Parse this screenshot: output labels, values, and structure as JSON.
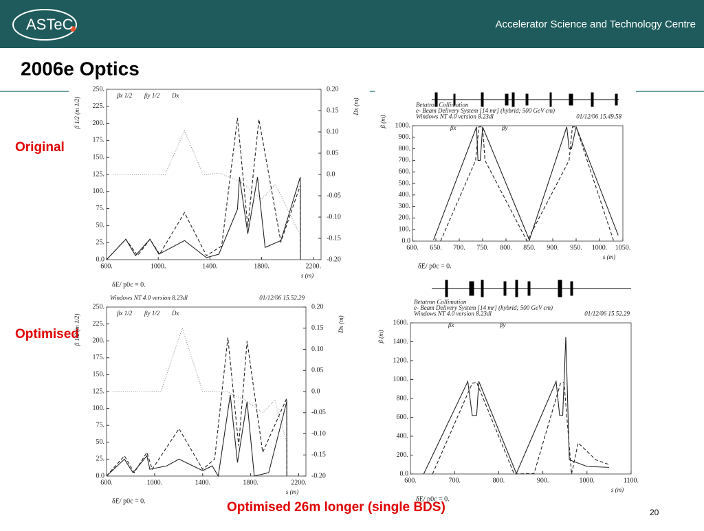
{
  "header": {
    "logo": "ASTeC",
    "organisation": "Accelerator Science and Technology Centre"
  },
  "title": "2006e Optics",
  "labels": [
    "Original",
    "Optimised"
  ],
  "caption": "Optimised 26m longer (single BDS)",
  "page_number": "20",
  "chart_data": [
    {
      "type": "line",
      "xlabel": "s (m)",
      "ylabel": "β 1/2 (m 1/2)",
      "y2label": "Dx (m)",
      "annotation": "δE/ p0c  =  0.",
      "xlim": [
        600,
        2260
      ],
      "xticks": [
        {
          "value": 600,
          "label": "600."
        },
        {
          "value": 1000,
          "label": "1000."
        },
        {
          "value": 1400,
          "label": "1400."
        },
        {
          "value": 1800,
          "label": "1800."
        },
        {
          "value": 2200,
          "label": "2200."
        }
      ],
      "ylim": [
        0,
        250
      ],
      "yticks": [
        {
          "value": 0,
          "label": "0.0"
        },
        {
          "value": 25,
          "label": "25."
        },
        {
          "value": 50,
          "label": "50."
        },
        {
          "value": 75,
          "label": "75."
        },
        {
          "value": 100,
          "label": "100."
        },
        {
          "value": 125,
          "label": "125."
        },
        {
          "value": 150,
          "label": "150."
        },
        {
          "value": 175,
          "label": "175."
        },
        {
          "value": 200,
          "label": "200."
        },
        {
          "value": 225,
          "label": "225."
        },
        {
          "value": 250,
          "label": "250."
        }
      ],
      "y2lim": [
        -0.2,
        0.2
      ],
      "y2ticks": [
        {
          "value": -0.2,
          "label": "-0.20"
        },
        -0.15,
        {
          "value": -0.1,
          "label": "-0.10"
        },
        -0.05,
        {
          "value": 0,
          "label": "0.0"
        },
        0.05,
        {
          "value": 0.1,
          "label": "0.10"
        },
        0.15,
        {
          "value": 0.2,
          "label": "0.20"
        }
      ],
      "series": [
        {
          "name": "βx 1/2",
          "color": "#222222",
          "style": "solid",
          "x": [
            600,
            749,
            824,
            936,
            1005,
            1203,
            1373,
            1469,
            1613,
            1629,
            1693,
            1768,
            1827,
            1949,
            2099,
            2100
          ],
          "values": [
            0,
            30,
            6,
            30,
            8,
            28,
            3,
            8,
            74,
            121,
            38,
            121,
            18,
            28,
            121,
            0
          ]
        },
        {
          "name": "βy 1/2",
          "color": "#222222",
          "style": "dashed",
          "x": [
            600,
            749,
            840,
            936,
            1011,
            1203,
            1373,
            1491,
            1613,
            1693,
            1779,
            1949,
            2099,
            2100
          ],
          "values": [
            0,
            30,
            6,
            30,
            8,
            69,
            6,
            20,
            208,
            48,
            206,
            26,
            109,
            0
          ]
        },
        {
          "name": "Dx",
          "color": "#888888",
          "style": "dotted",
          "axis": "y2",
          "x": [
            653,
            1053,
            1203,
            1347,
            1480,
            1640,
            1800,
            1907,
            2093
          ],
          "values": [
            0,
            0,
            0.103,
            0,
            0.003,
            -0.018,
            -0.058,
            -0.023,
            -0.139
          ]
        }
      ]
    },
    {
      "type": "line",
      "xlabel": "s (m)",
      "ylabel": "β (m)",
      "annotation": "δE/ p0c  =  0.",
      "header_lines": [
        "Betatron Collimation",
        "e- Beam Delivery System [14 mr] (hybrid; 500 GeV cm)",
        "Windows NT 4.0 version 8.23dl"
      ],
      "timestamp": "01/12/06  15.49.58",
      "xlim": [
        600,
        1050
      ],
      "xticks": [
        {
          "value": 600,
          "label": "600."
        },
        {
          "value": 650,
          "label": "650."
        },
        {
          "value": 700,
          "label": "700."
        },
        {
          "value": 750,
          "label": "750."
        },
        {
          "value": 800,
          "label": "800."
        },
        {
          "value": 850,
          "label": "850."
        },
        {
          "value": 900,
          "label": "900."
        },
        {
          "value": 950,
          "label": "950."
        },
        {
          "value": 1000,
          "label": "1000."
        },
        {
          "value": 1050,
          "label": "1050."
        }
      ],
      "ylim": [
        0,
        1000
      ],
      "yticks": [
        {
          "value": 0,
          "label": "0.0"
        },
        {
          "value": 100,
          "label": "100."
        },
        {
          "value": 200,
          "label": "200."
        },
        {
          "value": 300,
          "label": "300."
        },
        {
          "value": 400,
          "label": "400."
        },
        {
          "value": 500,
          "label": "500."
        },
        {
          "value": 600,
          "label": "600."
        },
        {
          "value": 700,
          "label": "700."
        },
        {
          "value": 800,
          "label": "800."
        },
        {
          "value": 900,
          "label": "900."
        },
        {
          "value": 1000,
          "label": "1000."
        }
      ],
      "series": [
        {
          "name": "βx",
          "color": "#222222",
          "style": "solid",
          "x": [
            645,
            737,
            740,
            745,
            750,
            850,
            930,
            935,
            940,
            950,
            1040
          ],
          "values": [
            10,
            990,
            700,
            700,
            990,
            10,
            990,
            800,
            800,
            990,
            50
          ]
        },
        {
          "name": "βy",
          "color": "#222222",
          "style": "dashed",
          "x": [
            660,
            735,
            742,
            750,
            755,
            845,
            935,
            942,
            950,
            1030
          ],
          "values": [
            0,
            700,
            990,
            990,
            700,
            0,
            700,
            990,
            990,
            5
          ]
        }
      ]
    },
    {
      "type": "line",
      "xlabel": "s (m)",
      "ylabel": "β 1/2 (m 1/2)",
      "y2label": "Dx (m)",
      "annotation": "δE/ p0c  =  0.",
      "header_lines": [
        "Windows NT 4.0 version 8.23dl"
      ],
      "timestamp": "01/12/06  15.52.29",
      "xlim": [
        600,
        2260
      ],
      "xticks": [
        {
          "value": 600,
          "label": "600."
        },
        {
          "value": 1000,
          "label": "1000."
        },
        {
          "value": 1400,
          "label": "1400."
        },
        {
          "value": 1800,
          "label": "1800."
        },
        {
          "value": 2200,
          "label": "2200."
        }
      ],
      "ylim": [
        0,
        250
      ],
      "yticks": [
        {
          "value": 0,
          "label": "0.0"
        },
        {
          "value": 25,
          "label": "25."
        },
        {
          "value": 50,
          "label": "50."
        },
        {
          "value": 75,
          "label": "75."
        },
        {
          "value": 100,
          "label": "100."
        },
        {
          "value": 125,
          "label": "125."
        },
        {
          "value": 150,
          "label": "150."
        },
        {
          "value": 175,
          "label": "175."
        },
        {
          "value": 200,
          "label": "200."
        },
        {
          "value": 225,
          "label": "225."
        },
        {
          "value": 250,
          "label": "250."
        }
      ],
      "y2lim": [
        -0.2,
        0.2
      ],
      "y2ticks": [
        {
          "value": -0.2,
          "label": "-0.20"
        },
        -0.15,
        {
          "value": -0.1,
          "label": "-0.10"
        },
        -0.05,
        {
          "value": 0,
          "label": "0.0"
        },
        0.05,
        {
          "value": 0.1,
          "label": "0.10"
        },
        0.15,
        {
          "value": 0.2,
          "label": "0.20"
        }
      ],
      "series": [
        {
          "name": "βx 1/2",
          "color": "#222222",
          "style": "solid",
          "x": [
            600,
            749,
            820,
            936,
            960,
            1100,
            1203,
            1400,
            1480,
            1530,
            1630,
            1690,
            1770,
            1830,
            1950,
            2100,
            2101
          ],
          "values": [
            0,
            25,
            5,
            30,
            10,
            15,
            25,
            8,
            15,
            0,
            120,
            20,
            110,
            0,
            5,
            110,
            0
          ]
        },
        {
          "name": "βy 1/2",
          "color": "#222222",
          "style": "dashed",
          "x": [
            600,
            749,
            830,
            936,
            980,
            1203,
            1400,
            1500,
            1610,
            1700,
            1770,
            1900,
            2100,
            2101
          ],
          "values": [
            0,
            30,
            5,
            35,
            10,
            70,
            10,
            25,
            205,
            45,
            200,
            35,
            115,
            0
          ]
        },
        {
          "name": "Dx",
          "color": "#888888",
          "style": "dotted",
          "axis": "y2",
          "x": [
            650,
            1053,
            1230,
            1400,
            1600,
            1750,
            1900,
            2000,
            2100
          ],
          "values": [
            0,
            0,
            0.15,
            0,
            0,
            -0.02,
            -0.05,
            -0.02,
            -0.12
          ]
        }
      ]
    },
    {
      "type": "line",
      "xlabel": "s (m)",
      "ylabel": "β (m)",
      "annotation": "δE/ p0c  =  0.",
      "header_lines": [
        "Betatron Collimation",
        "e- Beam Delivery System [14 mr] (hybrid; 500 GeV cm)",
        "Windows NT 4.0 version 8.23dl"
      ],
      "timestamp": "01/12/06  15.52.29",
      "xlim": [
        600,
        1100
      ],
      "xticks": [
        {
          "value": 600,
          "label": "600."
        },
        {
          "value": 700,
          "label": "700."
        },
        {
          "value": 800,
          "label": "800."
        },
        {
          "value": 900,
          "label": "900."
        },
        {
          "value": 1000,
          "label": "1000."
        },
        {
          "value": 1100,
          "label": "1100."
        }
      ],
      "ylim": [
        0,
        1600
      ],
      "yticks": [
        {
          "value": 0,
          "label": "0.0"
        },
        {
          "value": 200,
          "label": "200."
        },
        {
          "value": 400,
          "label": "400."
        },
        {
          "value": 600,
          "label": "600."
        },
        {
          "value": 800,
          "label": "800."
        },
        {
          "value": 1000,
          "label": "1000."
        },
        {
          "value": 1200,
          "label": "1200."
        },
        {
          "value": 1400,
          "label": "1400."
        },
        {
          "value": 1600,
          "label": "1600."
        }
      ],
      "series": [
        {
          "name": "βx",
          "color": "#222222",
          "style": "solid",
          "x": [
            630,
            730,
            740,
            750,
            755,
            840,
            930,
            938,
            945,
            952,
            960,
            1000,
            1050
          ],
          "values": [
            0,
            980,
            620,
            620,
            980,
            5,
            980,
            620,
            620,
            1450,
            150,
            80,
            70
          ]
        },
        {
          "name": "βy",
          "color": "#222222",
          "style": "dashed",
          "x": [
            650,
            740,
            750,
            835,
            880,
            940,
            948,
            965,
            980,
            1020,
            1050
          ],
          "values": [
            0,
            960,
            970,
            0,
            5,
            960,
            970,
            0,
            330,
            150,
            100
          ]
        }
      ]
    }
  ]
}
